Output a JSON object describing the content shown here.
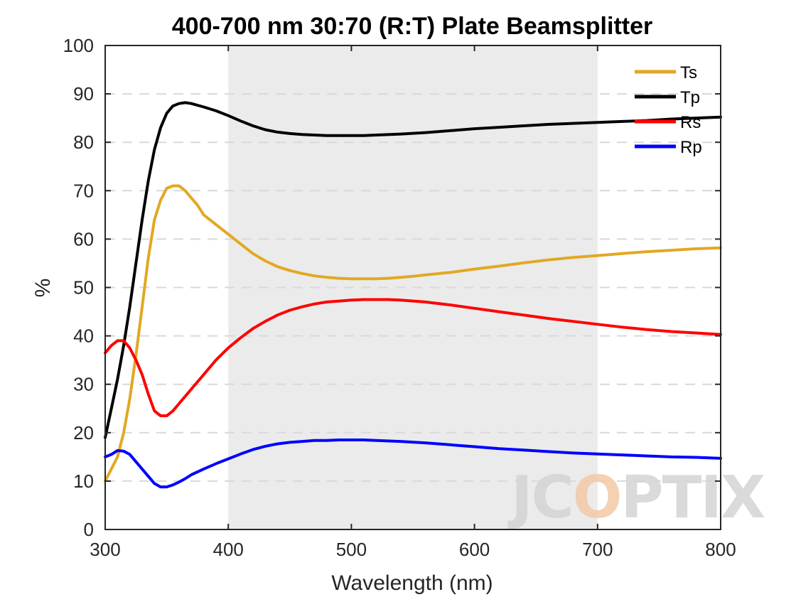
{
  "chart_data": {
    "type": "line",
    "title": "400-700 nm 30:70 (R:T) Plate Beamsplitter",
    "xlabel": "Wavelength (nm)",
    "ylabel": "%",
    "xlim": [
      300,
      800
    ],
    "ylim": [
      0,
      100
    ],
    "xticks": [
      300,
      400,
      500,
      600,
      700,
      800
    ],
    "yticks": [
      0,
      10,
      20,
      30,
      40,
      50,
      60,
      70,
      80,
      90,
      100
    ],
    "grid": "horizontal dashed",
    "shaded_band": [
      400,
      700
    ],
    "legend_position": "top-right",
    "watermark": "JCOPTIX",
    "colors": {
      "Ts": "#e2a823",
      "Tp": "#000000",
      "Rs": "#ff0000",
      "Rp": "#0000ff",
      "band": "#ebebeb",
      "grid": "#d9d9d9"
    },
    "series": [
      {
        "name": "Ts",
        "x": [
          300,
          305,
          310,
          315,
          320,
          325,
          330,
          335,
          340,
          345,
          350,
          355,
          360,
          365,
          370,
          375,
          380,
          390,
          400,
          410,
          420,
          430,
          440,
          450,
          460,
          470,
          480,
          490,
          500,
          510,
          520,
          530,
          540,
          550,
          560,
          580,
          600,
          620,
          640,
          660,
          680,
          700,
          720,
          740,
          760,
          780,
          800
        ],
        "y": [
          10,
          12.5,
          15,
          20,
          27,
          36,
          46,
          56,
          64,
          68,
          70.5,
          71,
          71,
          70,
          68.5,
          67,
          65,
          63,
          61,
          59,
          57,
          55.5,
          54.3,
          53.5,
          52.9,
          52.4,
          52.1,
          51.9,
          51.8,
          51.8,
          51.8,
          51.9,
          52.1,
          52.3,
          52.6,
          53.1,
          53.8,
          54.4,
          55.1,
          55.7,
          56.2,
          56.6,
          57,
          57.4,
          57.7,
          58,
          58.2
        ]
      },
      {
        "name": "Tp",
        "x": [
          300,
          305,
          310,
          315,
          320,
          325,
          330,
          335,
          340,
          345,
          350,
          355,
          360,
          365,
          370,
          380,
          390,
          400,
          410,
          420,
          430,
          440,
          450,
          460,
          470,
          480,
          490,
          500,
          510,
          520,
          540,
          560,
          580,
          600,
          620,
          640,
          660,
          680,
          700,
          720,
          740,
          760,
          780,
          800
        ],
        "y": [
          19,
          25,
          31,
          38,
          46,
          55,
          64,
          72,
          78.5,
          83,
          86,
          87.5,
          88,
          88.2,
          88,
          87.3,
          86.5,
          85.5,
          84.4,
          83.4,
          82.6,
          82.1,
          81.8,
          81.6,
          81.5,
          81.4,
          81.4,
          81.4,
          81.4,
          81.5,
          81.7,
          82,
          82.4,
          82.8,
          83.1,
          83.4,
          83.7,
          83.9,
          84.1,
          84.3,
          84.5,
          84.8,
          85,
          85.2
        ]
      },
      {
        "name": "Rs",
        "x": [
          300,
          305,
          310,
          315,
          320,
          325,
          330,
          335,
          340,
          345,
          350,
          355,
          360,
          365,
          370,
          380,
          390,
          400,
          410,
          420,
          430,
          440,
          450,
          460,
          470,
          480,
          490,
          500,
          510,
          520,
          530,
          540,
          560,
          580,
          600,
          620,
          640,
          660,
          680,
          700,
          720,
          740,
          760,
          780,
          800
        ],
        "y": [
          36.5,
          38,
          39,
          39,
          37.5,
          35,
          32,
          28,
          24.5,
          23.5,
          23.5,
          24.5,
          26,
          27.5,
          29,
          32,
          35,
          37.5,
          39.6,
          41.5,
          43,
          44.3,
          45.3,
          46,
          46.6,
          47,
          47.2,
          47.4,
          47.5,
          47.5,
          47.5,
          47.4,
          47,
          46.4,
          45.7,
          45,
          44.3,
          43.6,
          43,
          42.4,
          41.8,
          41.3,
          40.9,
          40.6,
          40.3
        ]
      },
      {
        "name": "Rp",
        "x": [
          300,
          305,
          310,
          315,
          320,
          325,
          330,
          335,
          340,
          345,
          350,
          355,
          360,
          365,
          370,
          380,
          390,
          400,
          410,
          420,
          430,
          440,
          450,
          460,
          470,
          480,
          490,
          500,
          510,
          520,
          540,
          560,
          580,
          600,
          620,
          640,
          660,
          680,
          700,
          720,
          740,
          760,
          780,
          800
        ],
        "y": [
          15,
          15.5,
          16.3,
          16.2,
          15.5,
          14,
          12.5,
          11,
          9.5,
          8.8,
          8.8,
          9.2,
          9.8,
          10.5,
          11.3,
          12.5,
          13.6,
          14.6,
          15.6,
          16.5,
          17.2,
          17.7,
          18,
          18.2,
          18.4,
          18.4,
          18.5,
          18.5,
          18.5,
          18.4,
          18.2,
          17.9,
          17.5,
          17.1,
          16.7,
          16.4,
          16.1,
          15.8,
          15.6,
          15.4,
          15.2,
          15,
          14.9,
          14.7
        ]
      }
    ]
  }
}
